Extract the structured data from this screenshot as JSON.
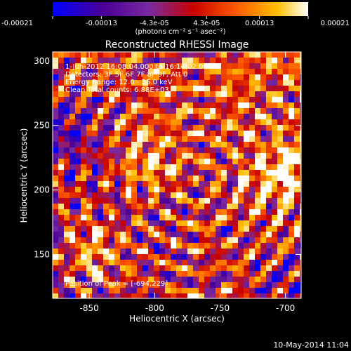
{
  "chart_data": {
    "type": "heatmap",
    "title": "Reconstructed RHESSI Image",
    "xlabel": "Heliocentric X (arcsec)",
    "ylabel": "Heliocentric Y (arcsec)",
    "xlim": [
      -878,
      -688
    ],
    "ylim": [
      116,
      307
    ],
    "xticks": [
      {
        "value": -850,
        "label": "-850"
      },
      {
        "value": -800,
        "label": "-800"
      },
      {
        "value": -750,
        "label": "-750"
      },
      {
        "value": -700,
        "label": "-700"
      }
    ],
    "yticks": [
      {
        "value": 150,
        "label": "150"
      },
      {
        "value": 200,
        "label": "200"
      },
      {
        "value": 250,
        "label": "250"
      },
      {
        "value": 300,
        "label": "300"
      }
    ],
    "colorbar": {
      "min": -0.00021,
      "max": 0.00021,
      "tick_values": [
        -0.00021,
        -0.00013,
        -4.3e-05,
        4.3e-05,
        0.00013,
        0.00021
      ],
      "tick_labels": [
        "-0.00021",
        "-0.00013",
        "-4.3e-05",
        "4.3e-05",
        "0.00013",
        "0.00021"
      ],
      "units_label": "(photons cm⁻² s⁻¹ asec⁻²)"
    },
    "colormap": [
      "#0000ff",
      "#4b0096",
      "#7a2aa0",
      "#c80000",
      "#ff5a00",
      "#ffc000",
      "#ffffff"
    ],
    "annotations": [
      "1-Jun-2012 16:08:04.000 to 16:14:02.000",
      "Detectors: 3F 5F 6F 7F 8F 9F, Att 0",
      "Energy Range: 12.0 - 25.0 keV",
      "Clean    Total counts: 6.88E+03"
    ],
    "peak_label": "Position of Peak = [-694,229]",
    "peak_position": [
      -694,
      229
    ],
    "ring_center": [
      -770,
      210
    ]
  },
  "footer_date": "10-May-2014 11:04"
}
